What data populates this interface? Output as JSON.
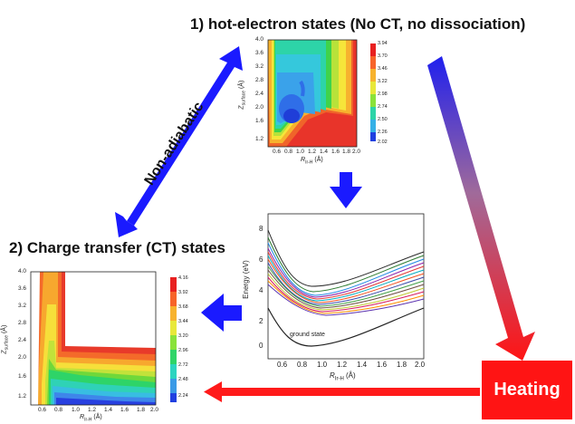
{
  "diagram": {
    "title_hot": "1) hot-electron states (No CT, no dissociation)",
    "title_ct": "2) Charge transfer (CT) states",
    "nonadiabatic_label": "Non-adiabatic",
    "heating_label": "Heating",
    "colors": {
      "blue_arrow": "#1a1aff",
      "red_arrow": "#ff1a1a",
      "heating_box": "#ff1414"
    }
  },
  "panel_hot": {
    "x_label": "R",
    "x_label_sub": "Ir-H",
    "x_label_unit": "(Å)",
    "y_label": "Z",
    "y_label_sub": "surface",
    "y_label_unit": "(Å)",
    "x_ticks": [
      "0.6",
      "0.8",
      "1.0",
      "1.2",
      "1.4",
      "1.6",
      "1.8",
      "2.0"
    ],
    "y_ticks": [
      "1.2",
      "1.6",
      "2.0",
      "2.4",
      "2.8",
      "3.2",
      "3.6",
      "4.0"
    ],
    "colorbar": [
      "3.94",
      "3.70",
      "3.46",
      "3.22",
      "2.98",
      "2.74",
      "2.50",
      "2.26",
      "2.02"
    ]
  },
  "panel_ct": {
    "x_label": "R",
    "x_label_sub": "Ir-H",
    "x_label_unit": "(Å)",
    "y_label": "Z",
    "y_label_sub": "surface",
    "y_label_unit": "(Å)",
    "x_ticks": [
      "0.6",
      "0.8",
      "1.0",
      "1.2",
      "1.4",
      "1.6",
      "1.8",
      "2.0"
    ],
    "y_ticks": [
      "1.2",
      "1.6",
      "2.0",
      "2.4",
      "2.8",
      "3.2",
      "3.6",
      "4.0"
    ],
    "colorbar": [
      "4.16",
      "3.92",
      "3.68",
      "3.44",
      "3.20",
      "2.96",
      "2.72",
      "2.48",
      "2.24"
    ]
  },
  "panel_energy": {
    "y_label": "Energy (eV)",
    "x_label": "R",
    "x_label_sub": "Ir-H",
    "x_label_unit": "(Å)",
    "x_ticks": [
      "0.6",
      "0.8",
      "1.0",
      "1.2",
      "1.4",
      "1.6",
      "1.8",
      "2.0"
    ],
    "y_ticks": [
      "0",
      "2",
      "4",
      "6",
      "8"
    ],
    "ground_state_label": "ground state"
  }
}
